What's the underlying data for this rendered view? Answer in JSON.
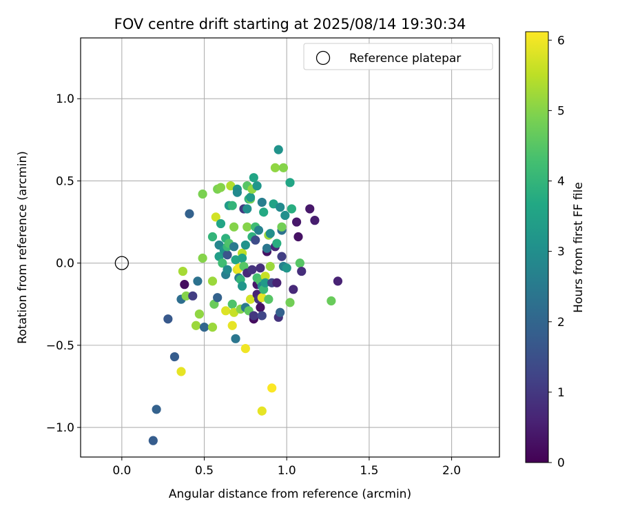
{
  "chart_data": {
    "type": "scatter",
    "title": "FOV centre drift starting at 2025/08/14 19:30:34",
    "xlabel": "Angular distance from reference (arcmin)",
    "ylabel": "Rotation from reference (arcmin)",
    "xlim": [
      -0.25,
      2.29
    ],
    "ylim": [
      -1.18,
      1.37
    ],
    "xticks": [
      0.0,
      0.5,
      1.0,
      1.5,
      2.0
    ],
    "xtick_labels": [
      "0.0",
      "0.5",
      "1.0",
      "1.5",
      "2.0"
    ],
    "yticks": [
      -1.0,
      -0.5,
      0.0,
      0.5,
      1.0
    ],
    "ytick_labels": [
      "−1.0",
      "−0.5",
      "0.0",
      "0.5",
      "1.0"
    ],
    "grid": true,
    "legend": {
      "position": "top-right",
      "entries": [
        "Reference platepar"
      ]
    },
    "reference_point": {
      "name": "Reference platepar",
      "x": 0.0,
      "y": 0.0,
      "marker": "open-circle"
    },
    "colorbar": {
      "label": "Hours from first FF file",
      "min": 0,
      "max": 6.12,
      "ticks": [
        0,
        1,
        2,
        3,
        4,
        5,
        6
      ],
      "tick_labels": [
        "0",
        "1",
        "2",
        "3",
        "4",
        "5",
        "6"
      ],
      "colormap": "viridis"
    },
    "points": [
      {
        "x": 0.19,
        "y": -1.08,
        "c": 1.8
      },
      {
        "x": 0.21,
        "y": -0.89,
        "c": 1.9
      },
      {
        "x": 0.32,
        "y": -0.57,
        "c": 1.8
      },
      {
        "x": 0.36,
        "y": -0.66,
        "c": 5.9
      },
      {
        "x": 0.28,
        "y": -0.34,
        "c": 1.7
      },
      {
        "x": 0.36,
        "y": -0.22,
        "c": 2.2
      },
      {
        "x": 0.38,
        "y": -0.13,
        "c": 0.2
      },
      {
        "x": 0.37,
        "y": -0.05,
        "c": 5.3
      },
      {
        "x": 0.39,
        "y": -0.2,
        "c": 5.0
      },
      {
        "x": 0.43,
        "y": -0.2,
        "c": 1.1
      },
      {
        "x": 0.41,
        "y": 0.3,
        "c": 1.9
      },
      {
        "x": 0.46,
        "y": -0.11,
        "c": 2.3
      },
      {
        "x": 0.45,
        "y": -0.38,
        "c": 5.2
      },
      {
        "x": 0.47,
        "y": -0.31,
        "c": 5.1
      },
      {
        "x": 0.49,
        "y": 0.03,
        "c": 5.0
      },
      {
        "x": 0.5,
        "y": -0.39,
        "c": 2.0
      },
      {
        "x": 0.49,
        "y": 0.42,
        "c": 4.9
      },
      {
        "x": 0.55,
        "y": -0.39,
        "c": 5.2
      },
      {
        "x": 0.55,
        "y": -0.11,
        "c": 5.2
      },
      {
        "x": 0.55,
        "y": 0.16,
        "c": 4.0
      },
      {
        "x": 0.56,
        "y": -0.25,
        "c": 4.7
      },
      {
        "x": 0.57,
        "y": 0.28,
        "c": 5.7
      },
      {
        "x": 0.58,
        "y": -0.21,
        "c": 1.9
      },
      {
        "x": 0.58,
        "y": 0.45,
        "c": 4.9
      },
      {
        "x": 0.59,
        "y": 0.11,
        "c": 2.8
      },
      {
        "x": 0.59,
        "y": 0.04,
        "c": 3.4
      },
      {
        "x": 0.6,
        "y": 0.24,
        "c": 3.6
      },
      {
        "x": 0.6,
        "y": 0.46,
        "c": 5.0
      },
      {
        "x": 0.61,
        "y": 0.0,
        "c": 4.2
      },
      {
        "x": 0.62,
        "y": 0.08,
        "c": 3.1
      },
      {
        "x": 0.63,
        "y": -0.07,
        "c": 2.6
      },
      {
        "x": 0.63,
        "y": 0.15,
        "c": 3.9
      },
      {
        "x": 0.63,
        "y": -0.29,
        "c": 5.8
      },
      {
        "x": 0.64,
        "y": -0.04,
        "c": 2.9
      },
      {
        "x": 0.64,
        "y": 0.05,
        "c": 1.6
      },
      {
        "x": 0.64,
        "y": 0.1,
        "c": 4.1
      },
      {
        "x": 0.65,
        "y": 0.12,
        "c": 4.4
      },
      {
        "x": 0.65,
        "y": 0.35,
        "c": 3.3
      },
      {
        "x": 0.66,
        "y": 0.47,
        "c": 5.4
      },
      {
        "x": 0.67,
        "y": -0.25,
        "c": 4.4
      },
      {
        "x": 0.67,
        "y": 0.35,
        "c": 4.0
      },
      {
        "x": 0.67,
        "y": -0.38,
        "c": 5.9
      },
      {
        "x": 0.68,
        "y": -0.3,
        "c": 5.6
      },
      {
        "x": 0.68,
        "y": 0.22,
        "c": 5.0
      },
      {
        "x": 0.68,
        "y": 0.1,
        "c": 2.5
      },
      {
        "x": 0.69,
        "y": -0.46,
        "c": 2.4
      },
      {
        "x": 0.69,
        "y": 0.02,
        "c": 3.6
      },
      {
        "x": 0.7,
        "y": 0.45,
        "c": 3.1
      },
      {
        "x": 0.7,
        "y": 0.43,
        "c": 2.9
      },
      {
        "x": 0.7,
        "y": -0.04,
        "c": 5.8
      },
      {
        "x": 0.71,
        "y": -0.03,
        "c": 6.0
      },
      {
        "x": 0.71,
        "y": -0.09,
        "c": 2.6
      },
      {
        "x": 0.72,
        "y": -0.1,
        "c": 4.0
      },
      {
        "x": 0.72,
        "y": -0.28,
        "c": 5.0
      },
      {
        "x": 0.73,
        "y": 0.06,
        "c": 5.5
      },
      {
        "x": 0.73,
        "y": -0.14,
        "c": 3.2
      },
      {
        "x": 0.73,
        "y": 0.03,
        "c": 3.5
      },
      {
        "x": 0.74,
        "y": 0.33,
        "c": 1.0
      },
      {
        "x": 0.74,
        "y": -0.02,
        "c": 4.5
      },
      {
        "x": 0.75,
        "y": -0.52,
        "c": 6.0
      },
      {
        "x": 0.75,
        "y": -0.27,
        "c": 2.5
      },
      {
        "x": 0.75,
        "y": 0.11,
        "c": 3.1
      },
      {
        "x": 0.76,
        "y": 0.22,
        "c": 5.0
      },
      {
        "x": 0.76,
        "y": 0.33,
        "c": 3.0
      },
      {
        "x": 0.76,
        "y": -0.06,
        "c": 0.7
      },
      {
        "x": 0.76,
        "y": 0.47,
        "c": 4.5
      },
      {
        "x": 0.77,
        "y": -0.29,
        "c": 4.6
      },
      {
        "x": 0.77,
        "y": 0.39,
        "c": 3.9
      },
      {
        "x": 0.78,
        "y": 0.39,
        "c": 4.8
      },
      {
        "x": 0.78,
        "y": 0.4,
        "c": 3.3
      },
      {
        "x": 0.78,
        "y": -0.22,
        "c": 5.7
      },
      {
        "x": 0.79,
        "y": -0.04,
        "c": 0.9
      },
      {
        "x": 0.79,
        "y": 0.16,
        "c": 3.9
      },
      {
        "x": 0.79,
        "y": 0.45,
        "c": 5.1
      },
      {
        "x": 0.8,
        "y": 0.52,
        "c": 3.6
      },
      {
        "x": 0.8,
        "y": -0.34,
        "c": 0.2
      },
      {
        "x": 0.8,
        "y": -0.32,
        "c": 1.0
      },
      {
        "x": 0.81,
        "y": 0.22,
        "c": 4.2
      },
      {
        "x": 0.81,
        "y": 0.14,
        "c": 1.4
      },
      {
        "x": 0.82,
        "y": -0.19,
        "c": 0.6
      },
      {
        "x": 0.82,
        "y": -0.13,
        "c": 0.4
      },
      {
        "x": 0.82,
        "y": -0.09,
        "c": 4.3
      },
      {
        "x": 0.82,
        "y": 0.47,
        "c": 3.2
      },
      {
        "x": 0.83,
        "y": -0.22,
        "c": 0.9
      },
      {
        "x": 0.83,
        "y": 0.2,
        "c": 2.7
      },
      {
        "x": 0.84,
        "y": -0.27,
        "c": 0.3
      },
      {
        "x": 0.84,
        "y": -0.11,
        "c": 4.4
      },
      {
        "x": 0.84,
        "y": -0.03,
        "c": 0.8
      },
      {
        "x": 0.85,
        "y": -0.9,
        "c": 5.9
      },
      {
        "x": 0.85,
        "y": -0.14,
        "c": 2.8
      },
      {
        "x": 0.85,
        "y": -0.32,
        "c": 1.3
      },
      {
        "x": 0.85,
        "y": 0.37,
        "c": 2.6
      },
      {
        "x": 0.85,
        "y": -0.21,
        "c": 5.9
      },
      {
        "x": 0.86,
        "y": -0.16,
        "c": 4.1
      },
      {
        "x": 0.86,
        "y": 0.31,
        "c": 3.7
      },
      {
        "x": 0.87,
        "y": -0.08,
        "c": 5.6
      },
      {
        "x": 0.87,
        "y": -0.12,
        "c": 3.3
      },
      {
        "x": 0.88,
        "y": 0.07,
        "c": 0.3
      },
      {
        "x": 0.88,
        "y": 0.09,
        "c": 2.4
      },
      {
        "x": 0.89,
        "y": 0.17,
        "c": 5.2
      },
      {
        "x": 0.89,
        "y": -0.22,
        "c": 4.5
      },
      {
        "x": 0.9,
        "y": 0.18,
        "c": 3.0
      },
      {
        "x": 0.9,
        "y": -0.02,
        "c": 5.2
      },
      {
        "x": 0.91,
        "y": -0.76,
        "c": 6.1
      },
      {
        "x": 0.91,
        "y": -0.12,
        "c": 1.3
      },
      {
        "x": 0.92,
        "y": 0.36,
        "c": 3.5
      },
      {
        "x": 0.93,
        "y": 0.58,
        "c": 5.1
      },
      {
        "x": 0.93,
        "y": 0.1,
        "c": 0.7
      },
      {
        "x": 0.94,
        "y": -0.12,
        "c": 0.6
      },
      {
        "x": 0.94,
        "y": 0.12,
        "c": 3.8
      },
      {
        "x": 0.95,
        "y": 0.69,
        "c": 3.1
      },
      {
        "x": 0.95,
        "y": -0.33,
        "c": 0.9
      },
      {
        "x": 0.96,
        "y": -0.3,
        "c": 1.9
      },
      {
        "x": 0.96,
        "y": 0.34,
        "c": 2.9
      },
      {
        "x": 0.97,
        "y": 0.2,
        "c": 2.3
      },
      {
        "x": 0.97,
        "y": 0.04,
        "c": 1.1
      },
      {
        "x": 0.97,
        "y": 0.22,
        "c": 4.8
      },
      {
        "x": 0.98,
        "y": -0.02,
        "c": 2.7
      },
      {
        "x": 0.98,
        "y": 0.58,
        "c": 5.0
      },
      {
        "x": 0.99,
        "y": 0.29,
        "c": 3.0
      },
      {
        "x": 1.0,
        "y": -0.03,
        "c": 3.2
      },
      {
        "x": 1.02,
        "y": -0.24,
        "c": 4.8
      },
      {
        "x": 1.02,
        "y": 0.49,
        "c": 3.6
      },
      {
        "x": 1.03,
        "y": 0.33,
        "c": 3.8
      },
      {
        "x": 1.04,
        "y": -0.16,
        "c": 0.7
      },
      {
        "x": 1.06,
        "y": 0.25,
        "c": 0.4
      },
      {
        "x": 1.07,
        "y": 0.16,
        "c": 0.3
      },
      {
        "x": 1.08,
        "y": 0.0,
        "c": 4.5
      },
      {
        "x": 1.09,
        "y": -0.05,
        "c": 0.8
      },
      {
        "x": 1.14,
        "y": 0.33,
        "c": 0.4
      },
      {
        "x": 1.17,
        "y": 0.26,
        "c": 0.5
      },
      {
        "x": 1.27,
        "y": -0.23,
        "c": 4.7
      },
      {
        "x": 1.31,
        "y": -0.11,
        "c": 0.6
      }
    ]
  }
}
